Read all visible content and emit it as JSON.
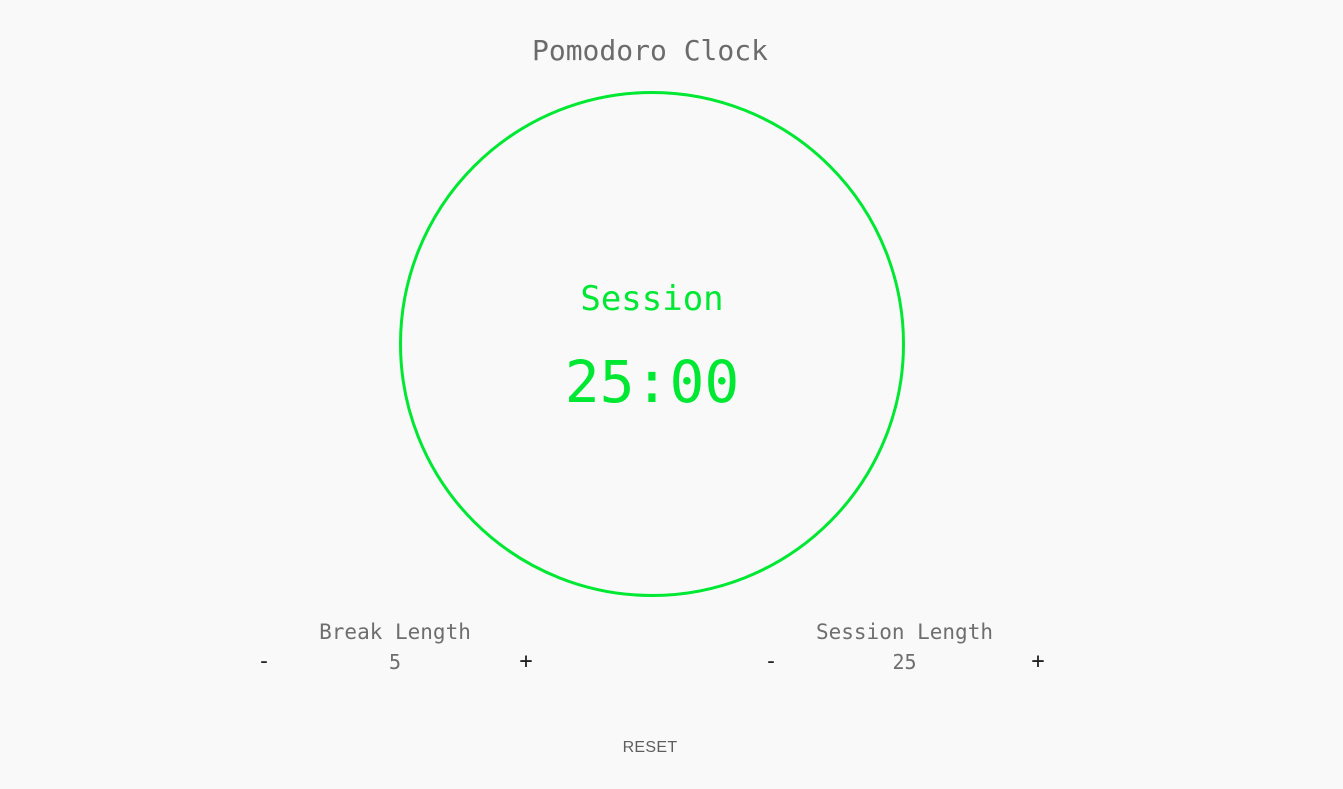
{
  "app": {
    "title": "Pomodoro Clock",
    "accent_color": "#00e832",
    "background_color": "#f9f9f9"
  },
  "timer": {
    "label": "Session",
    "time": "25:00"
  },
  "break_length": {
    "label": "Break Length",
    "decrement_label": "-",
    "value": "5",
    "increment_label": "+"
  },
  "session_length": {
    "label": "Session Length",
    "decrement_label": "-",
    "value": "25",
    "increment_label": "+"
  },
  "controls": {
    "reset_label": "RESET"
  }
}
